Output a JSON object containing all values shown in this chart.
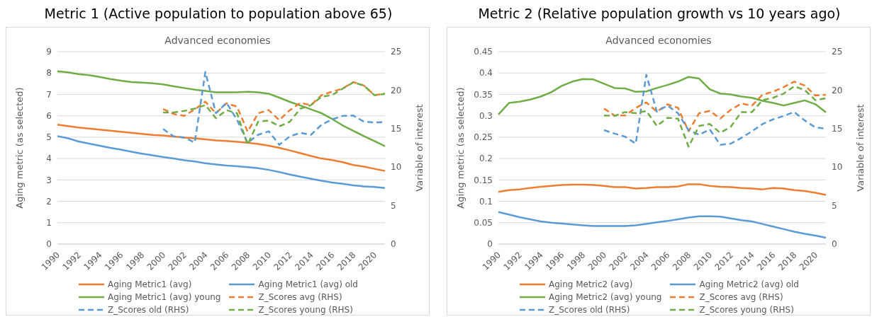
{
  "chart_data": [
    {
      "type": "line",
      "title": "Metric 1 (Active population to population above 65)",
      "subtitle": "Advanced economies",
      "ylabel": "Aging metric (as selected)",
      "y2label": "Variable of interest",
      "categories": [
        "1990",
        null,
        "1992",
        null,
        "1994",
        null,
        "1996",
        null,
        "1998",
        null,
        "2000",
        null,
        "2002",
        null,
        "2004",
        null,
        "2006",
        null,
        "2008",
        null,
        "2010",
        null,
        "2012",
        null,
        "2014",
        null,
        "2016",
        null,
        "2018",
        null,
        "2020",
        null
      ],
      "ylim": [
        0,
        9
      ],
      "yticks": [
        0,
        1,
        2,
        3,
        4,
        5,
        6,
        7,
        8,
        9
      ],
      "y2lim": [
        0,
        25
      ],
      "y2ticks": [
        0,
        5,
        10,
        15,
        20,
        25
      ],
      "grid": "y",
      "legend": "bottom",
      "marker": "none",
      "series": [
        {
          "name": "Aging Metric1 (avg)",
          "color": "#ed7d31",
          "line_style": "solid",
          "values": [
            5.58,
            5.52,
            5.45,
            5.4,
            5.35,
            5.3,
            5.25,
            5.2,
            5.15,
            5.1,
            5.08,
            5.03,
            4.98,
            4.95,
            4.9,
            4.85,
            4.82,
            4.78,
            4.74,
            4.68,
            4.6,
            4.5,
            4.38,
            4.25,
            4.12,
            4.0,
            3.93,
            3.83,
            3.7,
            3.62,
            3.52,
            3.42
          ]
        },
        {
          "name": "Aging Metric1 (avg) old",
          "color": "#5b9bd5",
          "line_style": "solid",
          "values": [
            5.05,
            4.95,
            4.8,
            4.7,
            4.6,
            4.5,
            4.42,
            4.32,
            4.23,
            4.15,
            4.07,
            4.0,
            3.92,
            3.86,
            3.78,
            3.72,
            3.67,
            3.64,
            3.6,
            3.55,
            3.47,
            3.37,
            3.25,
            3.15,
            3.05,
            2.96,
            2.88,
            2.82,
            2.75,
            2.7,
            2.67,
            2.62
          ]
        },
        {
          "name": "Aging Metric1 (avg) young",
          "color": "#70ad47",
          "line_style": "solid",
          "values": [
            8.08,
            8.03,
            7.95,
            7.9,
            7.82,
            7.72,
            7.64,
            7.58,
            7.55,
            7.52,
            7.47,
            7.38,
            7.3,
            7.22,
            7.16,
            7.1,
            7.1,
            7.1,
            7.12,
            7.1,
            7.03,
            6.85,
            6.65,
            6.48,
            6.3,
            6.12,
            5.85,
            5.55,
            5.3,
            5.05,
            4.82,
            4.58
          ]
        },
        {
          "name": "Z_Scores avg (RHS)",
          "color": "#ed7d31",
          "line_style": "dashed",
          "axis": "y2",
          "values": [
            null,
            null,
            null,
            null,
            null,
            null,
            null,
            null,
            null,
            null,
            17.55,
            16.9,
            16.65,
            17.5,
            18.5,
            17.0,
            18.3,
            17.85,
            14.6,
            17.0,
            17.4,
            16.1,
            17.4,
            18.35,
            18.05,
            19.35,
            19.8,
            20.2,
            21.05,
            20.6,
            19.35,
            19.55
          ]
        },
        {
          "name": "Z_Scores old (RHS)",
          "color": "#5b9bd5",
          "line_style": "dashed",
          "axis": "y2",
          "values": [
            null,
            null,
            null,
            null,
            null,
            null,
            null,
            null,
            null,
            null,
            14.95,
            14.0,
            13.85,
            13.2,
            22.35,
            17.0,
            18.35,
            16.15,
            13.15,
            14.2,
            14.65,
            12.9,
            14.0,
            14.45,
            14.2,
            15.5,
            16.2,
            16.65,
            16.7,
            15.9,
            15.8,
            15.85
          ]
        },
        {
          "name": "Z_Scores young (RHS)",
          "color": "#70ad47",
          "line_style": "dashed",
          "axis": "y2",
          "values": [
            null,
            null,
            null,
            null,
            null,
            null,
            null,
            null,
            null,
            null,
            17.1,
            17.1,
            17.3,
            17.6,
            18.05,
            16.35,
            17.4,
            17.0,
            12.9,
            15.9,
            16.05,
            15.3,
            15.9,
            17.6,
            18.05,
            19.15,
            19.35,
            20.2,
            21.0,
            20.6,
            19.35,
            19.5
          ]
        }
      ]
    },
    {
      "type": "line",
      "title": "Metric 2 (Relative population growth vs 10 years ago)",
      "subtitle": "Advanced economies",
      "ylabel": "Aging metric (as selected)",
      "y2label": "Variable of interest",
      "categories": [
        "1990",
        null,
        "1992",
        null,
        "1994",
        null,
        "1996",
        null,
        "1998",
        null,
        "2000",
        null,
        "2002",
        null,
        "2004",
        null,
        "2006",
        null,
        "2008",
        null,
        "2010",
        null,
        "2012",
        null,
        "2014",
        null,
        "2016",
        null,
        "2018",
        null,
        "2020",
        null
      ],
      "ylim": [
        0,
        0.45
      ],
      "yticks": [
        0,
        0.05,
        0.1,
        0.15,
        0.2,
        0.25,
        0.3,
        0.35,
        0.4,
        0.45
      ],
      "y2lim": [
        0,
        25
      ],
      "y2ticks": [
        0,
        5,
        10,
        15,
        20,
        25
      ],
      "grid": "y",
      "legend": "bottom",
      "marker": "none",
      "series": [
        {
          "name": "Aging Metric2 (avg)",
          "color": "#ed7d31",
          "line_style": "solid",
          "values": [
            0.122,
            0.126,
            0.128,
            0.131,
            0.134,
            0.136,
            0.138,
            0.139,
            0.139,
            0.138,
            0.136,
            0.133,
            0.133,
            0.13,
            0.131,
            0.133,
            0.133,
            0.135,
            0.14,
            0.14,
            0.136,
            0.134,
            0.133,
            0.131,
            0.13,
            0.128,
            0.131,
            0.13,
            0.126,
            0.124,
            0.12,
            0.115
          ]
        },
        {
          "name": "Aging Metric2 (avg) old",
          "color": "#5b9bd5",
          "line_style": "solid",
          "values": [
            0.075,
            0.069,
            0.063,
            0.058,
            0.053,
            0.05,
            0.048,
            0.046,
            0.044,
            0.042,
            0.042,
            0.042,
            0.042,
            0.044,
            0.047,
            0.051,
            0.054,
            0.058,
            0.062,
            0.065,
            0.065,
            0.064,
            0.06,
            0.056,
            0.053,
            0.047,
            0.041,
            0.035,
            0.029,
            0.024,
            0.02,
            0.015
          ]
        },
        {
          "name": "Aging Metric2 (avg) young",
          "color": "#70ad47",
          "line_style": "solid",
          "values": [
            0.303,
            0.33,
            0.333,
            0.338,
            0.345,
            0.355,
            0.37,
            0.38,
            0.386,
            0.385,
            0.375,
            0.365,
            0.364,
            0.356,
            0.357,
            0.365,
            0.372,
            0.38,
            0.391,
            0.387,
            0.362,
            0.352,
            0.35,
            0.345,
            0.342,
            0.335,
            0.33,
            0.324,
            0.33,
            0.336,
            0.327,
            0.308
          ]
        },
        {
          "name": "Z_Scores avg (RHS)",
          "color": "#ed7d31",
          "line_style": "dashed",
          "axis": "y2",
          "values": [
            null,
            null,
            null,
            null,
            null,
            null,
            null,
            null,
            null,
            null,
            17.6,
            16.7,
            16.7,
            17.7,
            18.4,
            17.2,
            18.15,
            17.7,
            14.65,
            17.0,
            17.3,
            16.3,
            17.45,
            18.25,
            18.0,
            19.4,
            19.8,
            20.4,
            21.1,
            20.6,
            19.3,
            19.4
          ]
        },
        {
          "name": "Z_Scores old (RHS)",
          "color": "#5b9bd5",
          "line_style": "dashed",
          "axis": "y2",
          "values": [
            null,
            null,
            null,
            null,
            null,
            null,
            null,
            null,
            null,
            null,
            14.8,
            14.35,
            13.95,
            13.05,
            22.0,
            17.2,
            18.0,
            17.0,
            14.8,
            14.2,
            14.9,
            12.9,
            13.05,
            13.8,
            14.65,
            15.6,
            16.2,
            16.65,
            17.15,
            16.05,
            15.15,
            15.0
          ]
        },
        {
          "name": "Z_Scores young (RHS)",
          "color": "#70ad47",
          "line_style": "dashed",
          "axis": "y2",
          "values": [
            null,
            null,
            null,
            null,
            null,
            null,
            null,
            null,
            null,
            null,
            16.7,
            16.65,
            17.15,
            17.0,
            17.3,
            15.35,
            16.4,
            16.3,
            12.65,
            15.35,
            15.6,
            14.45,
            15.25,
            17.15,
            17.15,
            18.7,
            19.0,
            19.55,
            20.5,
            20.0,
            18.7,
            18.95
          ]
        }
      ]
    }
  ]
}
